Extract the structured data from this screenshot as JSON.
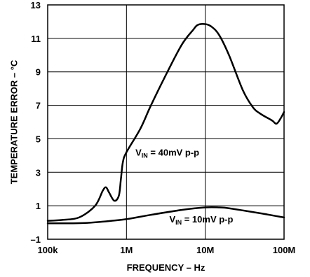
{
  "chart_data": {
    "type": "line",
    "xlabel": "FREQUENCY – Hz",
    "ylabel": "TEMPERATURE ERROR – °C",
    "x_scale": "log",
    "xlim": [
      100000,
      100000000
    ],
    "ylim": [
      -1,
      13
    ],
    "x_ticks": [
      {
        "value": 100000,
        "label": "100k"
      },
      {
        "value": 1000000,
        "label": "1M"
      },
      {
        "value": 10000000,
        "label": "10M"
      },
      {
        "value": 100000000,
        "label": "100M"
      }
    ],
    "y_ticks": [
      {
        "value": 13,
        "label": "13"
      },
      {
        "value": 11,
        "label": "11"
      },
      {
        "value": 9,
        "label": "9"
      },
      {
        "value": 7,
        "label": "7"
      },
      {
        "value": 5,
        "label": "5"
      },
      {
        "value": 3,
        "label": "3"
      },
      {
        "value": 1,
        "label": "1"
      },
      {
        "value": -1,
        "label": "–1"
      }
    ],
    "grid": true,
    "series": [
      {
        "annotation": {
          "prefix": "V",
          "subscript": "IN",
          "text": " = 40mV p-p",
          "x": 1300000,
          "y": 4.0
        },
        "points": [
          [
            100000,
            0.1
          ],
          [
            150000,
            0.15
          ],
          [
            250000,
            0.3
          ],
          [
            400000,
            1.0
          ],
          [
            500000,
            1.9
          ],
          [
            550000,
            2.1
          ],
          [
            600000,
            1.8
          ],
          [
            700000,
            1.3
          ],
          [
            800000,
            1.6
          ],
          [
            850000,
            2.6
          ],
          [
            900000,
            3.6
          ],
          [
            1000000,
            4.2
          ],
          [
            1500000,
            5.6
          ],
          [
            2000000,
            6.9
          ],
          [
            3000000,
            8.6
          ],
          [
            5000000,
            10.6
          ],
          [
            7000000,
            11.5
          ],
          [
            8000000,
            11.8
          ],
          [
            10000000,
            11.85
          ],
          [
            12000000,
            11.7
          ],
          [
            15000000,
            11.2
          ],
          [
            20000000,
            10.0
          ],
          [
            30000000,
            7.9
          ],
          [
            40000000,
            6.9
          ],
          [
            50000000,
            6.5
          ],
          [
            70000000,
            6.1
          ],
          [
            80000000,
            5.9
          ],
          [
            90000000,
            6.2
          ],
          [
            100000000,
            6.6
          ]
        ]
      },
      {
        "annotation": {
          "prefix": "V",
          "subscript": "IN",
          "text": " = 10mV p-p",
          "x": 3500000,
          "y": 0.0
        },
        "points": [
          [
            100000,
            -0.05
          ],
          [
            200000,
            -0.05
          ],
          [
            300000,
            -0.03
          ],
          [
            500000,
            0.05
          ],
          [
            1000000,
            0.2
          ],
          [
            2000000,
            0.45
          ],
          [
            5000000,
            0.75
          ],
          [
            10000000,
            0.9
          ],
          [
            15000000,
            0.9
          ],
          [
            20000000,
            0.85
          ],
          [
            50000000,
            0.55
          ],
          [
            100000000,
            0.3
          ]
        ]
      }
    ]
  }
}
